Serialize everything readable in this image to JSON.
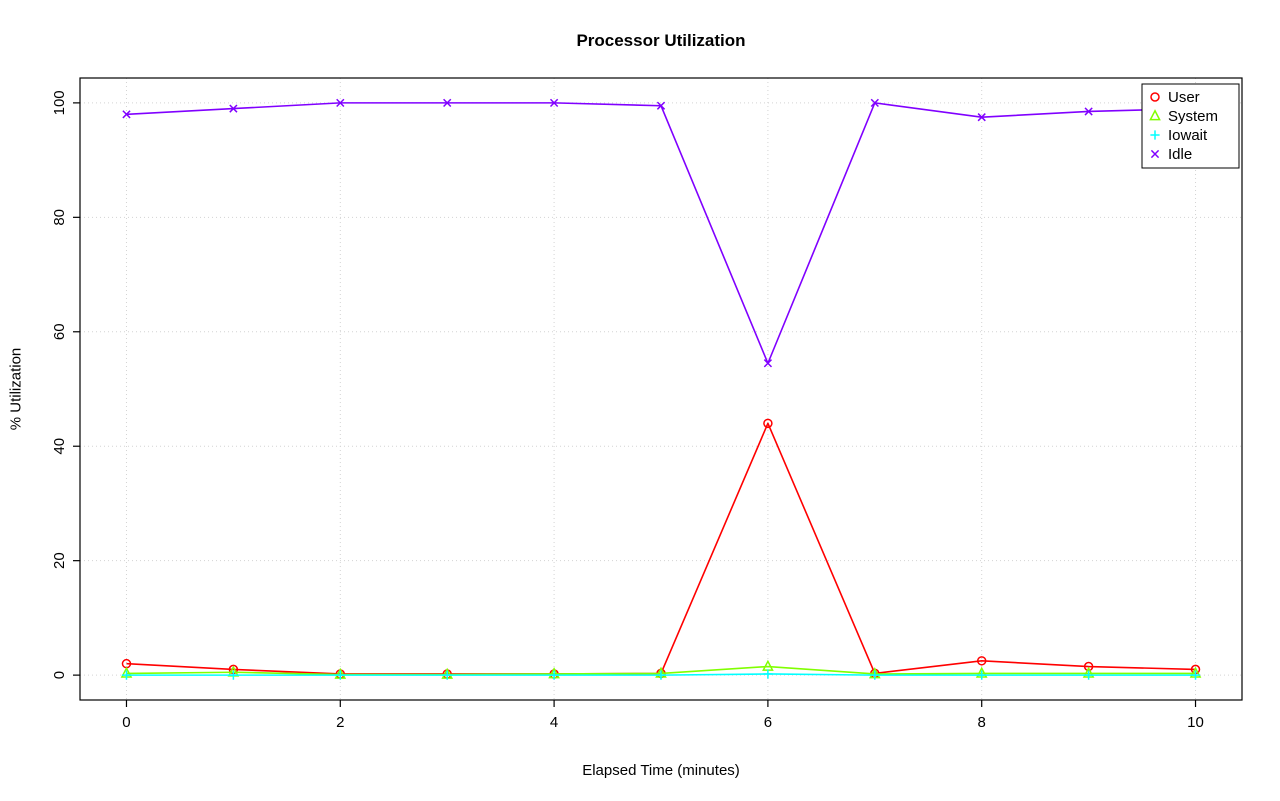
{
  "chart_data": {
    "type": "line",
    "title": "Processor Utilization",
    "xlabel": "Elapsed Time (minutes)",
    "ylabel": "% Utilization",
    "x": [
      0,
      1,
      2,
      3,
      4,
      5,
      6,
      7,
      8,
      9,
      10
    ],
    "series": [
      {
        "name": "User",
        "color": "#FF0000",
        "marker": "circle",
        "values": [
          2,
          1,
          0.2,
          0.2,
          0.2,
          0.3,
          44,
          0.3,
          2.5,
          1.5,
          1
        ]
      },
      {
        "name": "System",
        "color": "#80FF00",
        "marker": "triangle",
        "values": [
          0.3,
          0.5,
          0.1,
          0.1,
          0.2,
          0.3,
          1.5,
          0.2,
          0.3,
          0.3,
          0.3
        ]
      },
      {
        "name": "Iowait",
        "color": "#00FFFF",
        "marker": "plus",
        "values": [
          0,
          0,
          0,
          0,
          0,
          0,
          0.2,
          0,
          0,
          0,
          0
        ]
      },
      {
        "name": "Idle",
        "color": "#8000FF",
        "marker": "x",
        "values": [
          98,
          99,
          100,
          100,
          100,
          99.5,
          54.5,
          100,
          97.5,
          98.5,
          99
        ]
      }
    ],
    "xlim": [
      0,
      10
    ],
    "ylim": [
      0,
      100
    ],
    "xticks": [
      0,
      2,
      4,
      6,
      8,
      10
    ],
    "yticks": [
      0,
      20,
      40,
      60,
      80,
      100
    ],
    "grid": true,
    "grid_color": "#D3D3D3",
    "axis_color": "#000000",
    "legend_position": "top-right"
  }
}
